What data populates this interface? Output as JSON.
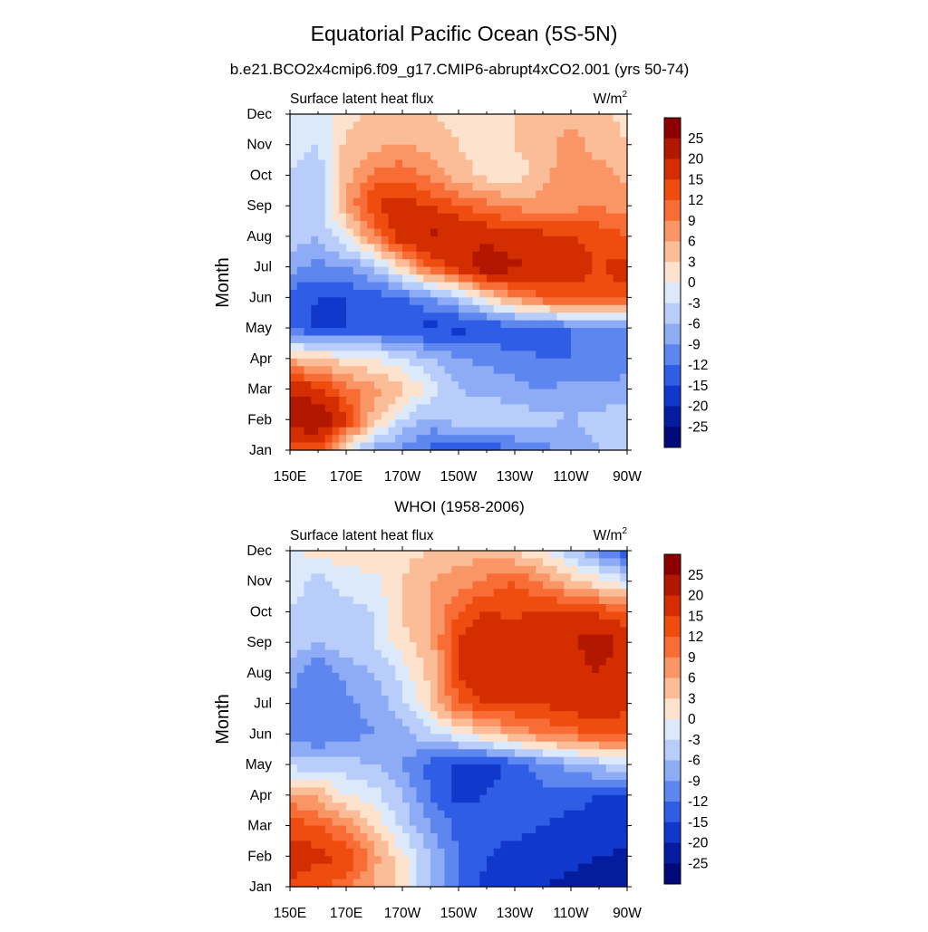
{
  "figure": {
    "title": "Equatorial Pacific Ocean (5S-5N)",
    "colorbar_labels": [
      "25",
      "20",
      "15",
      "12",
      "9",
      "6",
      "3",
      "0",
      "-3",
      "-6",
      "-9",
      "-12",
      "-15",
      "-20",
      "-25"
    ],
    "colorbar_colors": [
      "#8b0000",
      "#b21800",
      "#d42e00",
      "#ef4d10",
      "#f86d35",
      "#fa9566",
      "#fbbd98",
      "#fde3cd",
      "#dce9fb",
      "#b8cdfa",
      "#8eacf5",
      "#5d86ef",
      "#2f5de6",
      "#1038cc",
      "#051c9e",
      "#000a78"
    ]
  },
  "chart_data": [
    {
      "type": "heatmap",
      "title": "b.e21.BCO2x4cmip6.f09_g17.CMIP6-abrupt4xCO2.001 (yrs 50-74)",
      "left_label": "Surface latent heat flux",
      "units_base": "W/m",
      "units_exp": "2",
      "ylabel": "Month",
      "xlabel": "",
      "x": [
        150,
        160,
        170,
        180,
        190,
        200,
        210,
        220,
        230,
        240,
        250,
        260,
        270
      ],
      "x_ticks": [
        150,
        170,
        190,
        210,
        230,
        250,
        270
      ],
      "x_tick_labels": [
        "150E",
        "170E",
        "170W",
        "150W",
        "130W",
        "110W",
        "90W"
      ],
      "y": [
        1,
        2,
        3,
        4,
        5,
        6,
        7,
        8,
        9,
        10,
        11,
        12
      ],
      "y_tick_labels": [
        "Jan",
        "Feb",
        "Mar",
        "Apr",
        "May",
        "Jun",
        "Jul",
        "Aug",
        "Sep",
        "Oct",
        "Nov",
        "Dec"
      ],
      "xlim": [
        150,
        270
      ],
      "ylim": [
        1,
        12
      ],
      "color_levels": [
        -25,
        -20,
        -15,
        -12,
        -9,
        -6,
        -3,
        0,
        3,
        6,
        9,
        12,
        15,
        20,
        25
      ],
      "z": [
        [
          10,
          12,
          0,
          -8,
          -10,
          -13,
          -14,
          -14,
          -12,
          -10,
          -8,
          -6,
          -5
        ],
        [
          25,
          26,
          16,
          4,
          -3,
          -7,
          -4,
          -3,
          -4,
          -5,
          -6,
          -5,
          -5
        ],
        [
          18,
          16,
          10,
          7,
          4,
          -1,
          -6,
          -7,
          -8,
          -9,
          -8,
          -8,
          -7
        ],
        [
          5,
          3,
          1,
          0,
          -3,
          -6,
          -9,
          -10,
          -11,
          -12,
          -12,
          -12,
          -12
        ],
        [
          -13,
          -16,
          -15,
          -14,
          -15,
          -16,
          -16,
          -15,
          -14,
          -13,
          -12,
          -11,
          -10
        ],
        [
          -14,
          -15,
          -15,
          -14,
          -12,
          -9,
          -5,
          2,
          8,
          12,
          14,
          14,
          14
        ],
        [
          -8,
          -10,
          -9,
          -5,
          3,
          12,
          17,
          24,
          21,
          18,
          16,
          15,
          16
        ],
        [
          -4,
          -6,
          0,
          9,
          18,
          21,
          20,
          18,
          17,
          16,
          15,
          14,
          12
        ],
        [
          -4,
          -6,
          6,
          15,
          17,
          15,
          12,
          10,
          8,
          7,
          8,
          9,
          7
        ],
        [
          -3,
          -5,
          5,
          10,
          11,
          8,
          4,
          2,
          1,
          5,
          8,
          7,
          5
        ],
        [
          -2,
          -3,
          4,
          5,
          6,
          5,
          3,
          2,
          3,
          5,
          7,
          5,
          3
        ],
        [
          -1,
          -2,
          2,
          4,
          3,
          3,
          2,
          1,
          3,
          4,
          5,
          4,
          2
        ]
      ]
    },
    {
      "type": "heatmap",
      "title": "WHOI (1958-2006)",
      "left_label": "Surface latent heat flux",
      "units_base": "W/m",
      "units_exp": "2",
      "ylabel": "Month",
      "xlabel": "",
      "x": [
        150,
        160,
        170,
        180,
        190,
        200,
        210,
        220,
        230,
        240,
        250,
        260,
        270
      ],
      "x_ticks": [
        150,
        170,
        190,
        210,
        230,
        250,
        270
      ],
      "x_tick_labels": [
        "150E",
        "170E",
        "170W",
        "150W",
        "130W",
        "110W",
        "90W"
      ],
      "y": [
        1,
        2,
        3,
        4,
        5,
        6,
        7,
        8,
        9,
        10,
        11,
        12
      ],
      "y_tick_labels": [
        "Jan",
        "Feb",
        "Mar",
        "Apr",
        "May",
        "Jun",
        "Jul",
        "Aug",
        "Sep",
        "Oct",
        "Nov",
        "Dec"
      ],
      "xlim": [
        150,
        270
      ],
      "ylim": [
        1,
        12
      ],
      "color_levels": [
        -25,
        -20,
        -15,
        -12,
        -9,
        -6,
        -3,
        0,
        3,
        6,
        9,
        12,
        15,
        20,
        25
      ],
      "z": [
        [
          14,
          13,
          10,
          6,
          2,
          -6,
          -12,
          -16,
          -18,
          -20,
          -21,
          -22,
          -24
        ],
        [
          17,
          16,
          15,
          7,
          1,
          -6,
          -12,
          -15,
          -16,
          -18,
          -19,
          -20,
          -21
        ],
        [
          14,
          12,
          8,
          3,
          -4,
          -9,
          -13,
          -14,
          -14,
          -15,
          -16,
          -16,
          -16
        ],
        [
          7,
          5,
          0,
          -2,
          -6,
          -12,
          -16,
          -15,
          -14,
          -13,
          -14,
          -15,
          -15
        ],
        [
          -4,
          -5,
          -5,
          -6,
          -9,
          -13,
          -16,
          -16,
          -14,
          -10,
          -8,
          -5,
          -3
        ],
        [
          -11,
          -12,
          -10,
          -9,
          -7,
          -4,
          0,
          3,
          7,
          9,
          11,
          13,
          12
        ],
        [
          -11,
          -12,
          -10,
          -8,
          -4,
          3,
          12,
          16,
          15,
          15,
          17,
          18,
          16
        ],
        [
          -7,
          -12,
          -8,
          -6,
          -2,
          4,
          15,
          19,
          17,
          16,
          17,
          20,
          16
        ],
        [
          -4,
          -6,
          -4,
          -3,
          2,
          5,
          16,
          19,
          18,
          18,
          19,
          24,
          16
        ],
        [
          -3,
          -4,
          -4,
          -3,
          3,
          6,
          12,
          15,
          14,
          16,
          15,
          14,
          12
        ],
        [
          -2,
          -4,
          -2,
          -1,
          3,
          6,
          7,
          10,
          12,
          8,
          4,
          1,
          -3
        ],
        [
          0,
          1,
          3,
          2,
          2,
          3,
          5,
          4,
          3,
          0,
          -5,
          -10,
          -14
        ]
      ]
    }
  ]
}
